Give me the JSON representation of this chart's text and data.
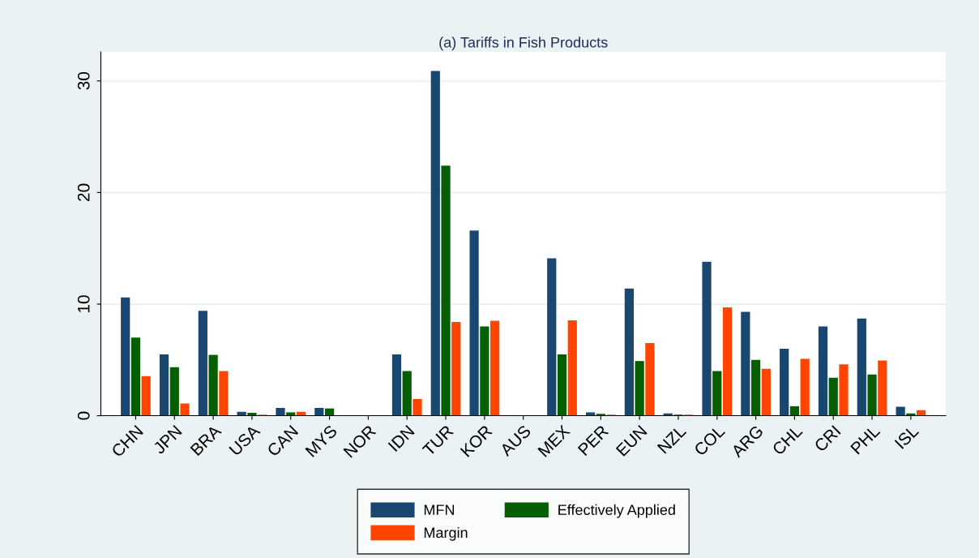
{
  "chart_data": {
    "type": "bar",
    "title": "(a) Tariffs in Fish Products",
    "categories": [
      "CHN",
      "JPN",
      "BRA",
      "USA",
      "CAN",
      "MYS",
      "NOR",
      "IDN",
      "TUR",
      "KOR",
      "AUS",
      "MEX",
      "PER",
      "EUN",
      "NZL",
      "COL",
      "ARG",
      "CHL",
      "CRI",
      "PHL",
      "ISL"
    ],
    "series": [
      {
        "name": "MFN",
        "color": "#1a476f",
        "values": [
          10.6,
          5.5,
          9.4,
          0.35,
          0.7,
          0.7,
          0,
          5.5,
          30.9,
          16.6,
          0,
          14.1,
          0.3,
          11.4,
          0.2,
          13.8,
          9.3,
          6.0,
          8.0,
          8.7,
          0.8
        ]
      },
      {
        "name": "Effectively Applied",
        "color": "#055e00",
        "values": [
          7.0,
          4.35,
          5.45,
          0.25,
          0.3,
          0.65,
          0,
          4.0,
          22.4,
          8.0,
          0,
          5.5,
          0.17,
          4.9,
          0.1,
          4.0,
          5.0,
          0.85,
          3.4,
          3.7,
          0.2
        ]
      },
      {
        "name": "Margin",
        "color": "#ff4500",
        "values": [
          3.55,
          1.1,
          4.0,
          0.1,
          0.35,
          0,
          0,
          1.5,
          8.4,
          8.5,
          0,
          8.55,
          0.1,
          6.5,
          0.1,
          9.7,
          4.2,
          5.1,
          4.6,
          4.95,
          0.5
        ]
      }
    ],
    "ylim": [
      0,
      32.6
    ],
    "yticks": [
      0,
      10,
      20,
      30
    ],
    "grid": "y",
    "legend": "bottom"
  }
}
